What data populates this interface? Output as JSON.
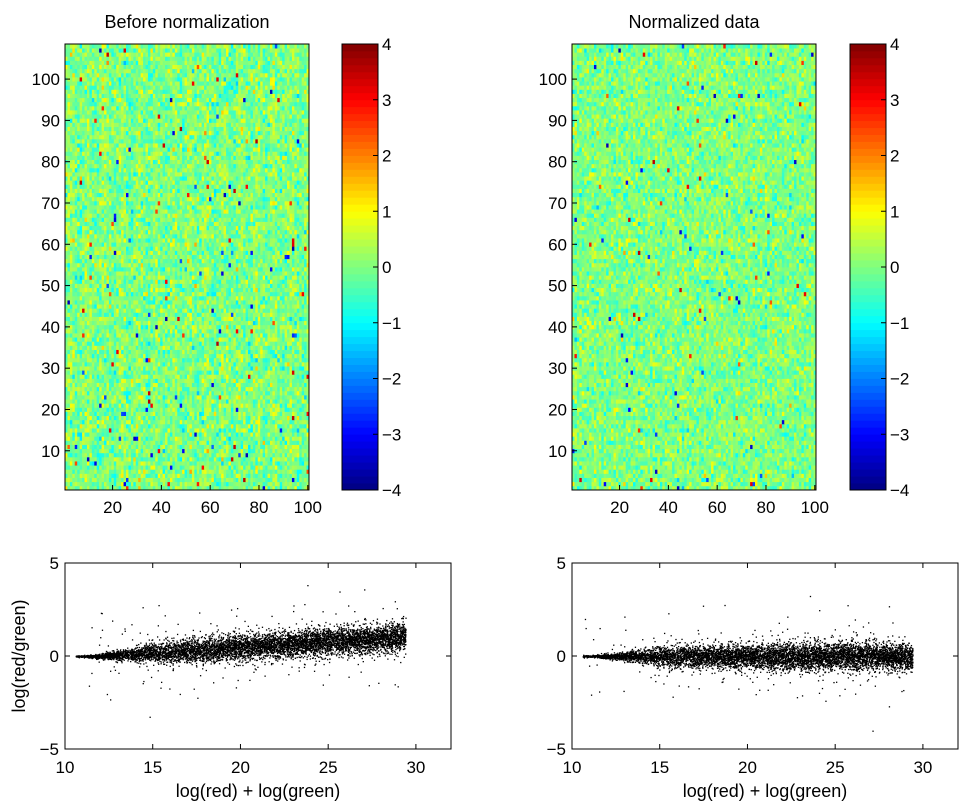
{
  "chart_data": [
    {
      "type": "heatmap",
      "title": "Before normalization",
      "xlim": [
        0.5,
        100.5
      ],
      "ylim": [
        0.5,
        108.5
      ],
      "xticks": [
        20,
        40,
        60,
        80,
        100
      ],
      "yticks": [
        10,
        20,
        30,
        40,
        50,
        60,
        70,
        80,
        90,
        100
      ],
      "n_cols": 100,
      "n_rows": 108,
      "value_spread": 0.45,
      "column_trend": 0.15,
      "outlier_rate": 0.012,
      "random_seed": 7,
      "colorbar": {
        "colormap": "jet",
        "range": [
          -4,
          4
        ],
        "ticks": [
          4,
          3,
          2,
          1,
          0,
          -1,
          -2,
          -3,
          -4
        ]
      }
    },
    {
      "type": "heatmap",
      "title": "Normalized data",
      "xlim": [
        0.5,
        100.5
      ],
      "ylim": [
        0.5,
        108.5
      ],
      "xticks": [
        20,
        40,
        60,
        80,
        100
      ],
      "yticks": [
        10,
        20,
        30,
        40,
        50,
        60,
        70,
        80,
        90,
        100
      ],
      "n_cols": 100,
      "n_rows": 108,
      "value_spread": 0.42,
      "column_trend": 0.0,
      "outlier_rate": 0.01,
      "random_seed": 11,
      "colorbar": {
        "colormap": "jet",
        "range": [
          -4,
          4
        ],
        "ticks": [
          4,
          3,
          2,
          1,
          0,
          -1,
          -2,
          -3,
          -4
        ]
      }
    },
    {
      "type": "scatter",
      "title": "",
      "xlabel": "log(red) + log(green)",
      "ylabel": "log(red/green)",
      "xlim": [
        10,
        32
      ],
      "ylim": [
        -5,
        5
      ],
      "xticks": [
        10,
        15,
        20,
        25,
        30
      ],
      "yticks": [
        -5,
        0,
        5
      ],
      "n_points": 7000,
      "x_range": [
        10.6,
        29.4
      ],
      "trend": {
        "start_x": 12,
        "slope": 0.06
      },
      "random_seed": 3
    },
    {
      "type": "scatter",
      "title": "",
      "xlabel": "log(red) + log(green)",
      "ylabel": "",
      "xlim": [
        10,
        32
      ],
      "ylim": [
        -5,
        5
      ],
      "xticks": [
        10,
        15,
        20,
        25,
        30
      ],
      "yticks": [
        -5,
        0,
        5
      ],
      "n_points": 7000,
      "x_range": [
        10.6,
        29.4
      ],
      "trend": {
        "start_x": 12,
        "slope": 0.0
      },
      "random_seed": 5
    }
  ]
}
